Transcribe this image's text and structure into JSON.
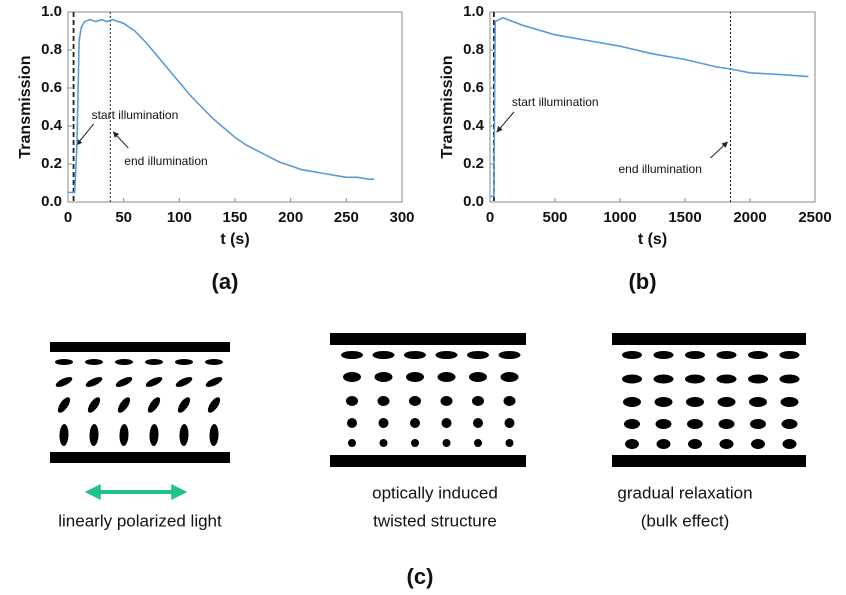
{
  "chart_data": [
    {
      "type": "line",
      "panel": "(a)",
      "x_label": "t (s)",
      "y_label": "Transmission",
      "color": "#5b9bd5",
      "x": [
        0,
        3,
        6,
        8,
        10,
        12,
        15,
        20,
        25,
        30,
        35,
        40,
        45,
        50,
        60,
        70,
        80,
        90,
        100,
        110,
        120,
        130,
        140,
        150,
        160,
        170,
        180,
        190,
        200,
        210,
        220,
        230,
        240,
        250,
        260,
        270,
        275
      ],
      "values": [
        0.05,
        0.05,
        0.05,
        0.3,
        0.85,
        0.92,
        0.95,
        0.96,
        0.95,
        0.96,
        0.95,
        0.96,
        0.95,
        0.94,
        0.9,
        0.84,
        0.77,
        0.7,
        0.63,
        0.56,
        0.5,
        0.44,
        0.39,
        0.34,
        0.3,
        0.27,
        0.24,
        0.21,
        0.19,
        0.17,
        0.16,
        0.15,
        0.14,
        0.13,
        0.13,
        0.12,
        0.12
      ],
      "xlim": [
        0,
        300
      ],
      "xticks": [
        0,
        50,
        100,
        150,
        200,
        250,
        300
      ],
      "ylim": [
        0,
        1
      ],
      "yticks": [
        {
          "value": 0,
          "label": "0.0"
        },
        0.2,
        0.4,
        0.6,
        0.8,
        {
          "value": 1,
          "label": "1.0"
        }
      ],
      "vlines": [
        5,
        38
      ],
      "annotations": [
        "start illumination",
        "end illumination"
      ]
    },
    {
      "type": "line",
      "panel": "(b)",
      "x_label": "t (s)",
      "y_label": "Transmission",
      "color": "#5b9bd5",
      "x": [
        0,
        30,
        40,
        100,
        250,
        500,
        750,
        1000,
        1250,
        1500,
        1750,
        1850,
        2000,
        2250,
        2450
      ],
      "values": [
        0.03,
        0.03,
        0.95,
        0.97,
        0.93,
        0.88,
        0.85,
        0.82,
        0.78,
        0.75,
        0.71,
        0.7,
        0.68,
        0.67,
        0.66
      ],
      "xlim": [
        0,
        2500
      ],
      "xticks": [
        0,
        500,
        1000,
        1500,
        2000,
        2500
      ],
      "ylim": [
        0,
        1
      ],
      "yticks": [
        {
          "value": 0,
          "label": "0.0"
        },
        0.2,
        0.4,
        0.6,
        0.8,
        {
          "value": 1,
          "label": "1.0"
        }
      ],
      "vlines": [
        30,
        1850
      ],
      "annotations": [
        "start illumination",
        "end illumination"
      ]
    }
  ],
  "diagram": {
    "panel": "(c)",
    "captions": [
      [
        "linearly polarized light"
      ],
      [
        "optically induced",
        "twisted structure"
      ],
      [
        "gradual relaxation",
        "(bulk effect)"
      ]
    ]
  }
}
